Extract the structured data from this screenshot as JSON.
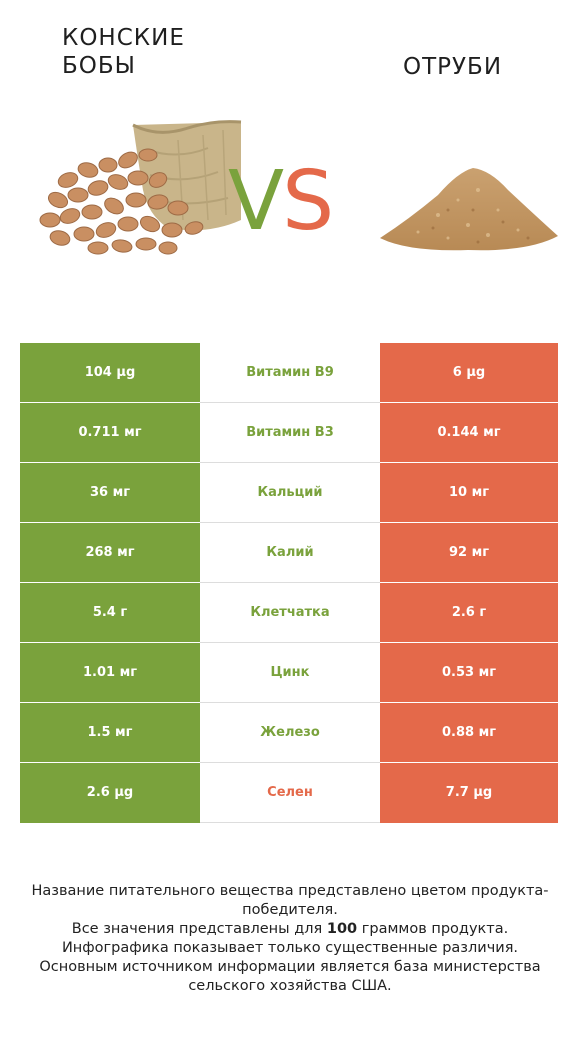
{
  "left_food": {
    "name": "КОНСКИЕ БОБЫ",
    "image": "fava-beans-with-sack",
    "color": "#7aa23c"
  },
  "right_food": {
    "name": "ОТРУБИ",
    "image": "bran-pile",
    "color": "#e4694a"
  },
  "vs": {
    "v": "V",
    "s": "S"
  },
  "rows": [
    {
      "left": "104 µg",
      "nutrient": "Витамин B9",
      "right": "6 µg",
      "winner": "left"
    },
    {
      "left": "0.711 мг",
      "nutrient": "Витамин B3",
      "right": "0.144 мг",
      "winner": "left"
    },
    {
      "left": "36 мг",
      "nutrient": "Кальций",
      "right": "10 мг",
      "winner": "left"
    },
    {
      "left": "268 мг",
      "nutrient": "Калий",
      "right": "92 мг",
      "winner": "left"
    },
    {
      "left": "5.4 г",
      "nutrient": "Клетчатка",
      "right": "2.6 г",
      "winner": "left"
    },
    {
      "left": "1.01 мг",
      "nutrient": "Цинк",
      "right": "0.53 мг",
      "winner": "left"
    },
    {
      "left": "1.5 мг",
      "nutrient": "Железо",
      "right": "0.88 мг",
      "winner": "left"
    },
    {
      "left": "2.6 µg",
      "nutrient": "Селен",
      "right": "7.7 µg",
      "winner": "right"
    }
  ],
  "footnote": {
    "line1": "Название питательного вещества представлено цветом продукта-победителя.",
    "line2_pre": "Все значения представлены для ",
    "line2_bold": "100",
    "line2_post": " граммов продукта.",
    "line3": "Инфографика показывает только существенные различия.",
    "line4": "Основным источником информации является база министерства сельского хозяйства США."
  }
}
